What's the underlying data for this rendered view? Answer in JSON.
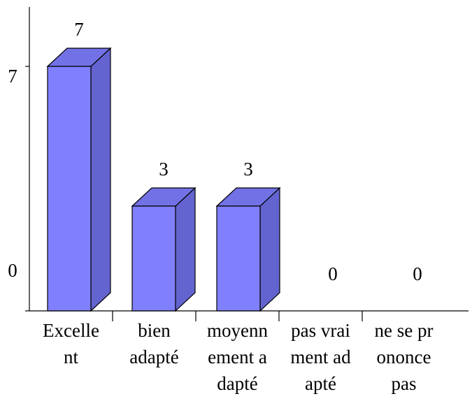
{
  "chart_data": {
    "type": "bar3d",
    "categories": [
      [
        "Excelle",
        "nt"
      ],
      [
        "bien",
        "adapté"
      ],
      [
        "moyenn",
        "ement a",
        "dapté"
      ],
      [
        "pas vrai",
        "ment ad",
        "apté"
      ],
      [
        "ne se pr",
        "ononce",
        "pas"
      ]
    ],
    "values": [
      7,
      3,
      3,
      0,
      0
    ],
    "color": "#8080ff",
    "ylim": [
      0,
      7
    ],
    "yticks": [
      0,
      7
    ]
  }
}
